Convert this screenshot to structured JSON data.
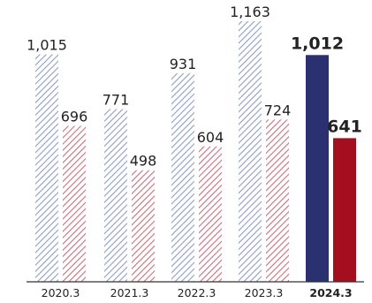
{
  "chart_data": {
    "type": "bar",
    "categories": [
      "2020.3",
      "2021.3",
      "2022.3",
      "2023.3",
      "2024.3"
    ],
    "series": [
      {
        "values": [
          1015,
          771,
          931,
          1163,
          1012
        ]
      },
      {
        "values": [
          696,
          498,
          604,
          724,
          641
        ]
      }
    ],
    "value_labels": {
      "series0": [
        "1,015",
        "771",
        "931",
        "1,163",
        "1,012"
      ],
      "series1": [
        "696",
        "498",
        "604",
        "724",
        "641"
      ]
    },
    "ylim": [
      0,
      1200
    ],
    "grid": false,
    "highlighted_category": "2024.3",
    "colors": {
      "series0_hatch": "#8d9fc4",
      "series1_hatch": "#c9707e",
      "series0_solid": "#2b3070",
      "series1_solid": "#a30f1e",
      "axis": "#333333",
      "text": "#222222"
    }
  }
}
